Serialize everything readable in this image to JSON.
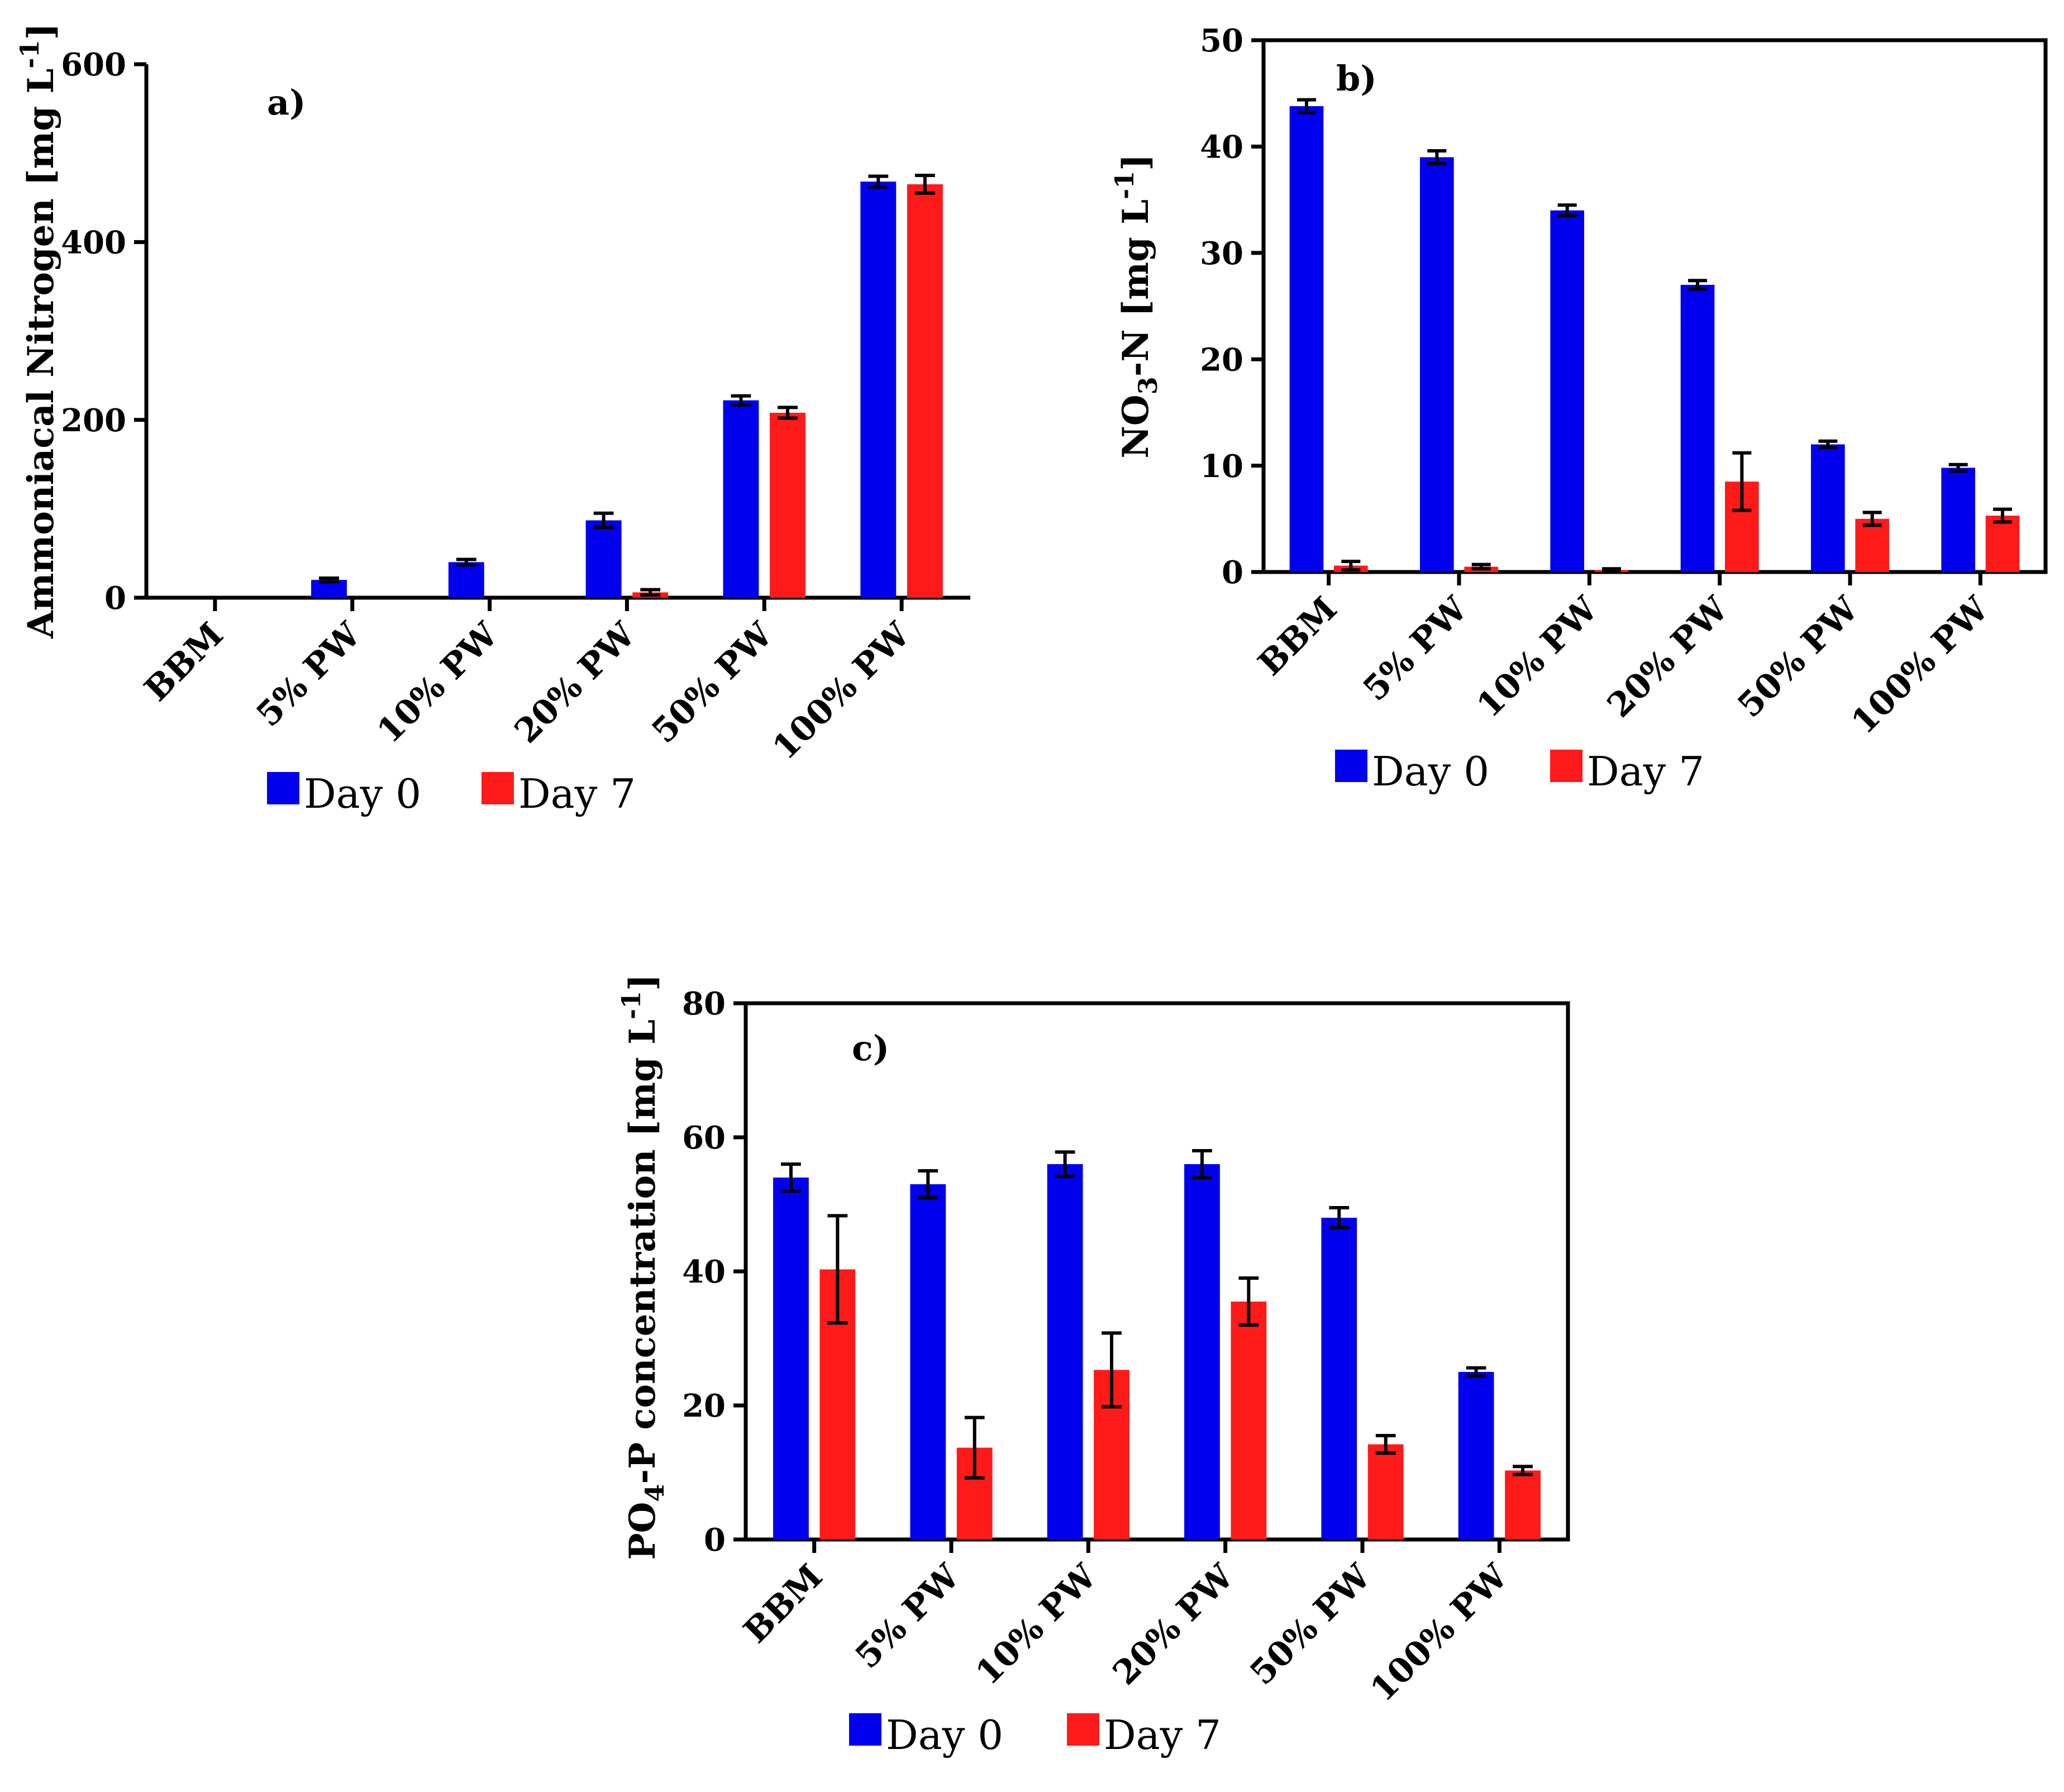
{
  "colors": {
    "day0": "#0000ee",
    "day7": "#ff1a1a",
    "axis": "#000000"
  },
  "chart_data": [
    {
      "id": "a",
      "type": "bar",
      "panel_label": "a)",
      "ylabel": "Ammoniacal  Nitrogen [mg L",
      "ylabel_sup": "-1",
      "ylabel_end": "]",
      "ylim": [
        0,
        600
      ],
      "yticks": [
        "0",
        "200",
        "400",
        "600"
      ],
      "categories": [
        "BBM",
        "5% PW",
        "10% PW",
        "20% PW",
        "50% PW",
        "100% PW"
      ],
      "series": [
        {
          "name": "Day 0",
          "values": [
            0,
            20,
            40,
            87,
            222,
            468
          ],
          "errors": [
            0,
            2,
            3,
            8,
            5,
            6
          ]
        },
        {
          "name": "Day 7",
          "values": [
            0,
            0,
            0,
            6,
            208,
            465
          ],
          "errors": [
            0,
            0,
            0,
            3,
            6,
            10
          ]
        }
      ],
      "legend": [
        "Day 0",
        "Day 7"
      ],
      "legend_position": "bottom-center",
      "box": "left-bottom-only"
    },
    {
      "id": "b",
      "type": "bar",
      "panel_label": "b)",
      "ylabel_parts": [
        "NO",
        "3",
        "-N [mg L",
        "-1"
      ],
      "ylim": [
        0,
        50
      ],
      "yticks": [
        "0",
        "10",
        "20",
        "30",
        "40",
        "50"
      ],
      "categories": [
        "BBM",
        "5% PW",
        "10% PW",
        "20% PW",
        "50% PW",
        "100% PW"
      ],
      "series": [
        {
          "name": "Day 0",
          "values": [
            43.8,
            39,
            34,
            27,
            12,
            9.8
          ],
          "errors": [
            0.6,
            0.6,
            0.5,
            0.4,
            0.3,
            0.3
          ]
        },
        {
          "name": "Day 7",
          "values": [
            0.6,
            0.5,
            0.2,
            8.5,
            5,
            5.3
          ],
          "errors": [
            0.4,
            0.2,
            0.1,
            2.7,
            0.6,
            0.6
          ]
        }
      ],
      "legend": [
        "Day 0",
        "Day 7"
      ],
      "legend_position": "bottom-center",
      "box": "full"
    },
    {
      "id": "c",
      "type": "bar",
      "panel_label": "c)",
      "ylabel_parts": [
        "PO",
        "4",
        "-P concentration [mg L",
        "-1"
      ],
      "ylim": [
        0,
        80
      ],
      "yticks": [
        "0",
        "20",
        "40",
        "60",
        "80"
      ],
      "categories": [
        "BBM",
        "5% PW",
        "10% PW",
        "20% PW",
        "50% PW",
        "100% PW"
      ],
      "series": [
        {
          "name": "Day 0",
          "values": [
            54,
            53,
            56,
            56,
            48,
            25
          ],
          "errors": [
            2,
            2,
            1.8,
            2,
            1.5,
            0.6
          ]
        },
        {
          "name": "Day 7",
          "values": [
            40.3,
            13.7,
            25.3,
            35.5,
            14.2,
            10.3
          ],
          "errors": [
            8,
            4.5,
            5.5,
            3.5,
            1.3,
            0.6
          ]
        }
      ],
      "legend": [
        "Day 0",
        "Day 7"
      ],
      "legend_position": "bottom-center",
      "box": "full"
    }
  ]
}
